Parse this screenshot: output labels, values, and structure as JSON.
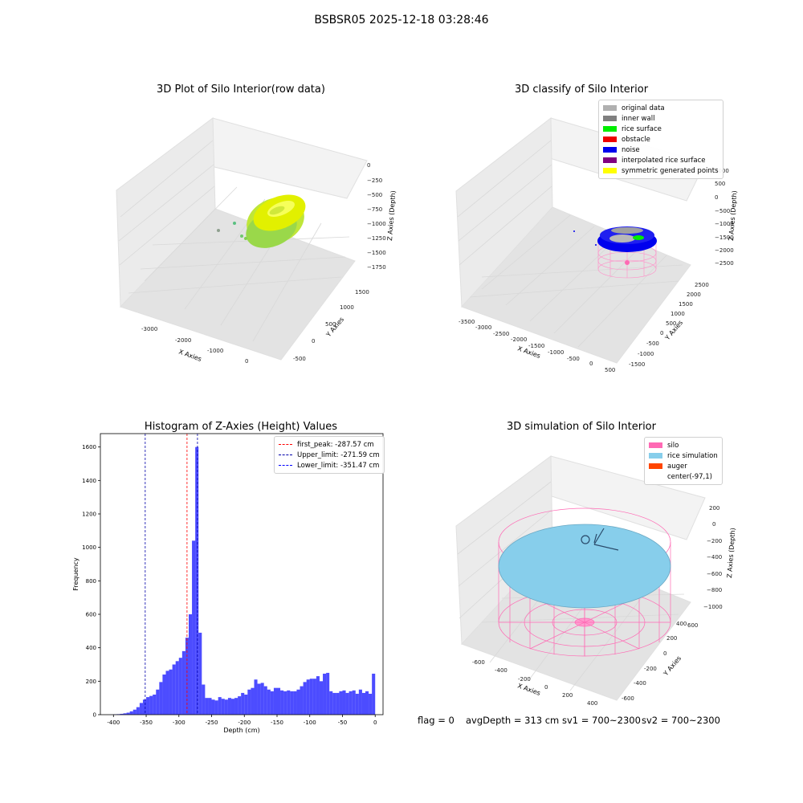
{
  "figure": {
    "title": "BSBSR05 2025-12-18 03:28:46",
    "status": {
      "flag": "flag = 0",
      "avg_depth": "avgDepth = 313 cm",
      "sv1": "sv1 = 700~2300",
      "sv2": "sv2 = 700~2300"
    }
  },
  "chart_data": [
    {
      "type": "scatter",
      "subtype": "3d",
      "title": "3D Plot of Silo Interior(row data)",
      "xlabel": "X Axies",
      "ylabel": "Y Axies",
      "zlabel": "Z Axies (Depth)",
      "x_ticks": [
        "-3000",
        "-2000",
        "-1000",
        "0"
      ],
      "y_ticks": [
        "-500",
        "0",
        "500",
        "1000",
        "1500"
      ],
      "z_ticks": [
        "0",
        "−250",
        "−500",
        "−750",
        "−1000",
        "−1250",
        "−1500",
        "−1750"
      ],
      "description_colors": {
        "surface": "#c8f000",
        "low": "#5ad060"
      }
    },
    {
      "type": "scatter",
      "subtype": "3d",
      "title": "3D classify of Silo Interior",
      "xlabel": "X Axies",
      "ylabel": "Y Axies",
      "zlabel": "Z Axies (Depth)",
      "x_ticks": [
        "-3500",
        "-3000",
        "-2500",
        "-2000",
        "-1500",
        "-1000",
        "-500",
        "0",
        "500"
      ],
      "y_ticks": [
        "-1500",
        "-1000",
        "-500",
        "0",
        "500",
        "1000",
        "1500",
        "2000",
        "2500"
      ],
      "z_ticks": [
        "1000",
        "500",
        "0",
        "−500",
        "−1000",
        "−1500",
        "−2000",
        "−2500"
      ],
      "legend": [
        {
          "label": "original data",
          "color": "#b0b0b0"
        },
        {
          "label": "inner wall",
          "color": "#808080"
        },
        {
          "label": "rice surface",
          "color": "#00ee00"
        },
        {
          "label": "obstacle",
          "color": "#ee0000"
        },
        {
          "label": "noise",
          "color": "#0000ee"
        },
        {
          "label": "interpolated rice surface",
          "color": "#800080"
        },
        {
          "label": "symmetric generated points",
          "color": "#ffff00"
        }
      ]
    },
    {
      "type": "bar",
      "subtype": "histogram",
      "title": "Histogram of Z-Axies (Height) Values",
      "xlabel": "Depth (cm)",
      "ylabel": "Frequency",
      "xlim": [
        -420,
        12
      ],
      "ylim": [
        0,
        1680
      ],
      "x_ticks": [
        -400,
        -350,
        -300,
        -250,
        -200,
        -150,
        -100,
        -50,
        0
      ],
      "y_ticks": [
        0,
        200,
        400,
        600,
        800,
        1000,
        1200,
        1400,
        1600
      ],
      "bin_width": 5,
      "bin_starts": [
        -400,
        -395,
        -390,
        -385,
        -380,
        -375,
        -370,
        -365,
        -360,
        -355,
        -350,
        -345,
        -340,
        -335,
        -330,
        -325,
        -320,
        -315,
        -310,
        -305,
        -300,
        -295,
        -290,
        -285,
        -280,
        -275,
        -270,
        -265,
        -260,
        -255,
        -250,
        -245,
        -240,
        -235,
        -230,
        -225,
        -220,
        -215,
        -210,
        -205,
        -200,
        -195,
        -190,
        -185,
        -180,
        -175,
        -170,
        -165,
        -160,
        -155,
        -150,
        -145,
        -140,
        -135,
        -130,
        -125,
        -120,
        -115,
        -110,
        -105,
        -100,
        -95,
        -90,
        -85,
        -80,
        -75,
        -70,
        -65,
        -60,
        -55,
        -50,
        -45,
        -40,
        -35,
        -30,
        -25,
        -20,
        -15,
        -10,
        -5
      ],
      "values": [
        2,
        3,
        5,
        8,
        12,
        20,
        30,
        45,
        70,
        90,
        105,
        112,
        120,
        150,
        195,
        240,
        262,
        270,
        300,
        320,
        340,
        380,
        460,
        600,
        1040,
        1600,
        490,
        180,
        100,
        100,
        90,
        85,
        105,
        95,
        90,
        100,
        95,
        100,
        110,
        130,
        120,
        150,
        160,
        210,
        185,
        190,
        170,
        150,
        140,
        160,
        160,
        145,
        140,
        145,
        140,
        140,
        150,
        170,
        195,
        210,
        215,
        215,
        230,
        200,
        245,
        250,
        140,
        130,
        130,
        140,
        145,
        130,
        140,
        145,
        125,
        150,
        130,
        140,
        125,
        245
      ],
      "color": "#0000ff",
      "vlines": [
        {
          "x": -287.57,
          "label": "first_peak: -287.57 cm",
          "color": "#ff0000"
        },
        {
          "x": -271.59,
          "label": "Upper_limit: -271.59 cm",
          "color": "#0000aa"
        },
        {
          "x": -351.47,
          "label": "Lower_limit: -351.47 cm",
          "color": "#0000aa"
        }
      ]
    },
    {
      "type": "scatter",
      "subtype": "3d",
      "title": "3D simulation of Silo Interior",
      "xlabel": "X Axies",
      "ylabel": "Y Axies",
      "zlabel": "Z Axies (Depth)",
      "x_ticks": [
        "-600",
        "-400",
        "-200",
        "0",
        "200",
        "400"
      ],
      "y_ticks": [
        "-600",
        "-400",
        "-200",
        "0",
        "200",
        "400",
        "600"
      ],
      "z_ticks": [
        "200",
        "0",
        "−200",
        "−400",
        "−600",
        "−800",
        "−1000"
      ],
      "legend": [
        {
          "label": "silo",
          "color": "#ff69b4"
        },
        {
          "label": "rice simulation",
          "color": "#87ceeb"
        },
        {
          "label": "auger",
          "color": "#ff4500"
        },
        {
          "label": "center(-97,1)",
          "color": ""
        }
      ]
    }
  ]
}
